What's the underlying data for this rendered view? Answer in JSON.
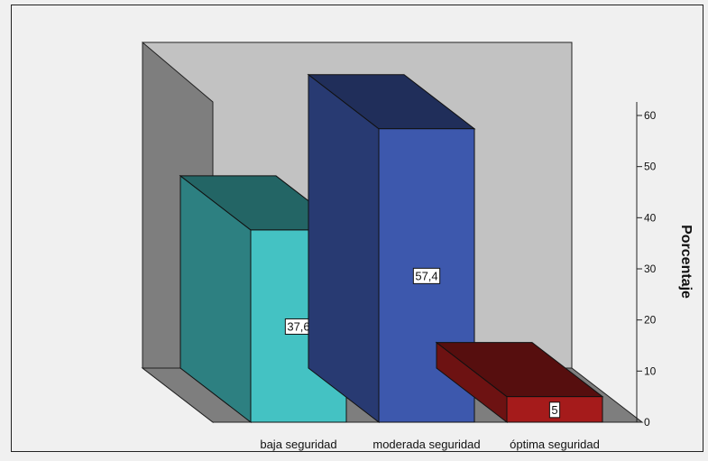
{
  "chart_data": {
    "type": "bar",
    "title": "",
    "categories": [
      "baja seguridad",
      "moderada seguridad",
      "óptima seguridad"
    ],
    "values": [
      37.6,
      57.4,
      5.0
    ],
    "data_labels": [
      "37,6",
      "57,4",
      "5"
    ],
    "colors": [
      "#44c2c3",
      "#3d58ad",
      "#a51b1b"
    ],
    "xlabel": "",
    "ylabel": "Porcentaje",
    "ylim": [
      0,
      60
    ],
    "yticks": [
      0,
      10,
      20,
      30,
      40,
      50,
      60
    ],
    "ytick_labels": [
      "0",
      "10",
      "20",
      "30",
      "40",
      "50",
      "60"
    ],
    "grid": false,
    "legend": "none",
    "style": "3d"
  }
}
